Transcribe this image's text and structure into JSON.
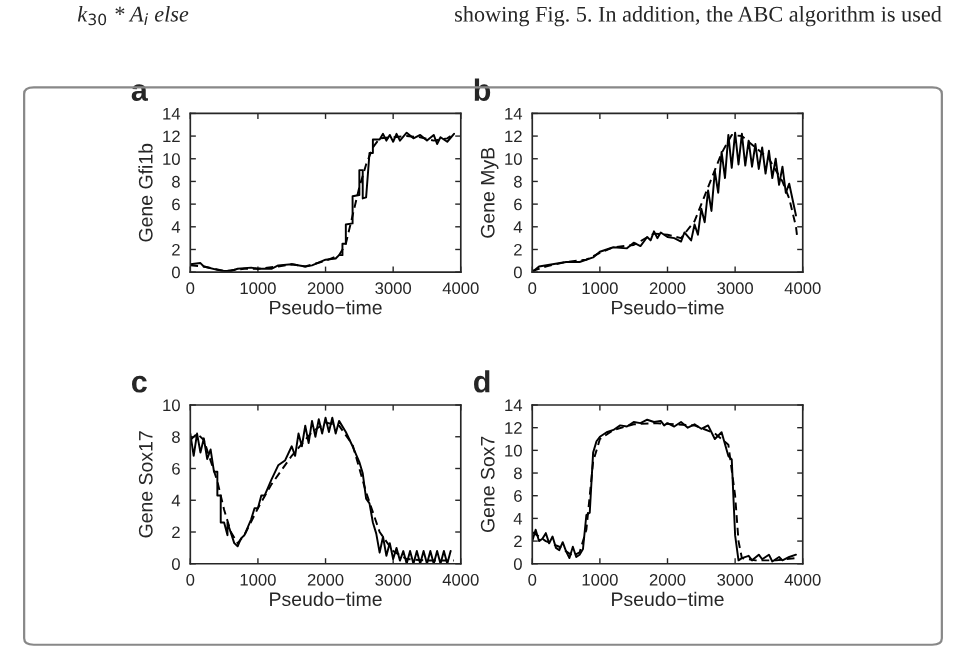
{
  "chart_data": [
    {
      "type": "other",
      "annotations": [
        "k$_{30}$ * A$_{i}$ else",
        "showing Fig. 5. In addition, the ABC algorithm is used"
      ]
    },
    {
      "type": "line",
      "title": "a",
      "xlabel": "Pseudo−time",
      "ylabel": "Gene Gfi1b",
      "xlim": [
        0,
        4000
      ],
      "ylim": [
        0,
        14
      ],
      "xticks": [
        0,
        1000,
        2000,
        3000,
        4000
      ],
      "yticks": [
        0,
        2,
        4,
        6,
        8,
        10,
        12,
        14
      ],
      "grid": false,
      "series": [
        {
          "color": "#000000",
          "line_style": "solid",
          "x": [
            0,
            150,
            200,
            400,
            500,
            600,
            700,
            900,
            1000,
            1200,
            1300,
            1500,
            1700,
            1800,
            2000,
            2150,
            2200,
            2250,
            2250,
            2300,
            2300,
            2400,
            2400,
            2500,
            2500,
            2550,
            2550,
            2600,
            2650,
            2700,
            2700,
            2800,
            2850,
            2900,
            2950,
            3000,
            3050,
            3100,
            3200,
            3300,
            3400,
            3500,
            3600,
            3650,
            3700,
            3800,
            3900
          ],
          "values": [
            0.7,
            0.8,
            0.5,
            0.2,
            0.1,
            0.1,
            0.3,
            0.4,
            0.3,
            0.3,
            0.6,
            0.7,
            0.5,
            0.6,
            1.1,
            1.2,
            1.5,
            1.5,
            2.5,
            2.5,
            4.2,
            4.3,
            6.7,
            6.8,
            9,
            9,
            6.5,
            6.6,
            10.5,
            10.5,
            11.7,
            11.7,
            12.2,
            11.6,
            12.1,
            11.5,
            12.2,
            11.6,
            12.3,
            11.8,
            12.1,
            11.6,
            12.1,
            11.3,
            11.9,
            11.5,
            12.2
          ]
        },
        {
          "color": "#000000",
          "line_style": "dashed",
          "x": [
            0,
            200,
            500,
            800,
            1000,
            1300,
            1500,
            1700,
            2000,
            2200,
            2300,
            2400,
            2500,
            2600,
            2700,
            2800,
            3000,
            3200,
            3400,
            3600,
            3800,
            3900
          ],
          "values": [
            0.6,
            0.5,
            0.1,
            0.3,
            0.3,
            0.5,
            0.7,
            0.5,
            1.0,
            1.5,
            2.5,
            5,
            7.5,
            9.5,
            11,
            11.8,
            11.9,
            12,
            11.9,
            11.6,
            11.8,
            12.2
          ]
        }
      ]
    },
    {
      "type": "line",
      "title": "b",
      "xlabel": "Pseudo−time",
      "ylabel": "Gene MyB",
      "xlim": [
        0,
        4000
      ],
      "ylim": [
        0,
        14
      ],
      "xticks": [
        0,
        1000,
        2000,
        3000,
        4000
      ],
      "yticks": [
        0,
        2,
        4,
        6,
        8,
        10,
        12,
        14
      ],
      "grid": false,
      "series": [
        {
          "color": "#000000",
          "line_style": "solid",
          "x": [
            0,
            100,
            300,
            500,
            700,
            900,
            1000,
            1200,
            1400,
            1500,
            1600,
            1700,
            1750,
            1800,
            1850,
            1900,
            2000,
            2100,
            2200,
            2250,
            2350,
            2400,
            2450,
            2500,
            2550,
            2600,
            2650,
            2700,
            2750,
            2800,
            2850,
            2900,
            2950,
            3000,
            3050,
            3100,
            3150,
            3200,
            3250,
            3300,
            3350,
            3400,
            3450,
            3500,
            3550,
            3600,
            3650,
            3700,
            3750,
            3800,
            3900
          ],
          "values": [
            0,
            0.5,
            0.7,
            0.9,
            0.9,
            1.3,
            1.8,
            2.2,
            2.1,
            2.6,
            2.3,
            3.1,
            2.8,
            3.6,
            3.0,
            3.5,
            3.1,
            3.0,
            2.7,
            3.5,
            2.8,
            4.2,
            3.3,
            5.6,
            4.4,
            7.2,
            5.4,
            8.9,
            7,
            10.6,
            8.3,
            12.1,
            9.2,
            12.3,
            9.5,
            12.2,
            9.4,
            11.6,
            9.3,
            11.3,
            9.1,
            11,
            8.7,
            10.7,
            8.3,
            10,
            7.7,
            9.3,
            7,
            7.8,
            5
          ]
        },
        {
          "color": "#000000",
          "line_style": "dashed",
          "x": [
            0,
            200,
            500,
            800,
            1000,
            1200,
            1500,
            1800,
            2000,
            2200,
            2400,
            2600,
            2800,
            2950,
            3100,
            3300,
            3500,
            3700,
            3800,
            3900,
            3920
          ],
          "values": [
            0.1,
            0.5,
            0.9,
            1.1,
            1.7,
            2.2,
            2.4,
            3.4,
            3.3,
            3.0,
            4.5,
            7.5,
            10.5,
            12.1,
            12,
            11,
            10,
            8,
            6.5,
            4,
            3
          ]
        }
      ]
    },
    {
      "type": "line",
      "title": "c",
      "xlabel": "Pseudo−time",
      "ylabel": "Gene Sox17",
      "xlim": [
        0,
        4000
      ],
      "ylim": [
        0,
        10
      ],
      "xticks": [
        0,
        1000,
        2000,
        3000,
        4000
      ],
      "yticks": [
        0,
        2,
        4,
        6,
        8,
        10
      ],
      "grid": false,
      "series": [
        {
          "color": "#000000",
          "line_style": "solid",
          "x": [
            0,
            50,
            100,
            150,
            200,
            250,
            300,
            350,
            400,
            400,
            450,
            450,
            500,
            550,
            550,
            650,
            700,
            750,
            800,
            900,
            950,
            1000,
            1050,
            1100,
            1200,
            1300,
            1400,
            1500,
            1550,
            1600,
            1650,
            1700,
            1750,
            1800,
            1850,
            1900,
            1950,
            2000,
            2050,
            2100,
            2150,
            2200,
            2300,
            2400,
            2500,
            2550,
            2600,
            2650,
            2700,
            2750,
            2800,
            2850,
            2900,
            2950,
            3000,
            3050,
            3100,
            3150,
            3200,
            3250,
            3300,
            3350,
            3400,
            3450,
            3500,
            3550,
            3600,
            3650,
            3700,
            3750,
            3800,
            3850
          ],
          "values": [
            8.2,
            6.8,
            8.2,
            7,
            7.9,
            6.6,
            7.2,
            5.8,
            5.8,
            4.3,
            4.3,
            2.6,
            2.6,
            1.8,
            2.6,
            1.3,
            1.1,
            1.6,
            1.8,
            2.8,
            3.5,
            3.5,
            4.3,
            4.3,
            5.3,
            6.2,
            6.5,
            7.4,
            6.8,
            8.2,
            7.4,
            8.7,
            7.6,
            9,
            8,
            9.1,
            8.2,
            9.2,
            8.3,
            9.2,
            8.2,
            9,
            8.3,
            7.4,
            6.4,
            5.7,
            4.1,
            3.8,
            2.6,
            1.9,
            0.7,
            1.7,
            0.5,
            1.3,
            0.3,
            1.0,
            0.2,
            0.8,
            0,
            0.8,
            0,
            0.8,
            0,
            0.8,
            0,
            0.8,
            0,
            0.8,
            0,
            0.8,
            0,
            0.8
          ]
        },
        {
          "color": "#000000",
          "line_style": "dashed",
          "x": [
            0,
            100,
            200,
            400,
            500,
            600,
            700,
            800,
            1000,
            1200,
            1500,
            1800,
            2000,
            2200,
            2400,
            2600,
            2800,
            3000,
            3200,
            3500,
            3900
          ],
          "values": [
            7.8,
            8.2,
            7.8,
            5.2,
            3.4,
            2,
            1.3,
            1.8,
            3.5,
            5,
            6.8,
            8.3,
            8.9,
            8.7,
            7.5,
            4.5,
            2,
            0.8,
            0.3,
            0.2,
            0.2
          ]
        }
      ]
    },
    {
      "type": "line",
      "title": "d",
      "xlabel": "Pseudo−time",
      "ylabel": "Gene Sox7",
      "xlim": [
        0,
        4000
      ],
      "ylim": [
        0,
        14
      ],
      "xticks": [
        0,
        1000,
        2000,
        3000,
        4000
      ],
      "yticks": [
        0,
        2,
        4,
        6,
        8,
        10,
        12,
        14
      ],
      "grid": false,
      "series": [
        {
          "color": "#000000",
          "line_style": "solid",
          "x": [
            0,
            50,
            100,
            150,
            200,
            250,
            300,
            350,
            400,
            450,
            500,
            550,
            600,
            650,
            700,
            750,
            800,
            850,
            900,
            950,
            1000,
            1100,
            1200,
            1300,
            1400,
            1500,
            1600,
            1700,
            1800,
            1900,
            1950,
            2000,
            2100,
            2200,
            2300,
            2400,
            2500,
            2600,
            2700,
            2800,
            2900,
            2950,
            3000,
            3050,
            3100,
            3200,
            3250,
            3350,
            3400,
            3500,
            3550,
            3650,
            3700,
            3800,
            3900
          ],
          "values": [
            2,
            3,
            2,
            2.2,
            2.7,
            1.8,
            2.4,
            1.4,
            1.2,
            1.9,
            1.1,
            0.5,
            1.5,
            0.6,
            0.8,
            1.3,
            4.3,
            4.5,
            9.8,
            10.8,
            11.2,
            11.6,
            11.8,
            12.2,
            12.1,
            12.5,
            12.4,
            12.7,
            12.5,
            12.6,
            12.2,
            12.4,
            12.1,
            12.5,
            12,
            12.3,
            11.9,
            12.2,
            11,
            11.6,
            9.5,
            9.2,
            2.5,
            0.3,
            0.5,
            0.7,
            0.3,
            0.8,
            0.4,
            0.8,
            0.2,
            0.6,
            0.3,
            0.6,
            0.8
          ]
        },
        {
          "color": "#000000",
          "line_style": "dashed",
          "x": [
            0,
            200,
            400,
            600,
            700,
            800,
            900,
            1000,
            1200,
            1500,
            1800,
            2100,
            2400,
            2700,
            2900,
            3000,
            3050,
            3100,
            3300,
            3600,
            3900
          ],
          "values": [
            2.8,
            2,
            1.5,
            0.7,
            1,
            3,
            9,
            11,
            11.8,
            12.3,
            12.4,
            12.3,
            12.2,
            11.5,
            10.5,
            6,
            2,
            0.5,
            0.3,
            0.3,
            0.5
          ]
        }
      ]
    }
  ]
}
